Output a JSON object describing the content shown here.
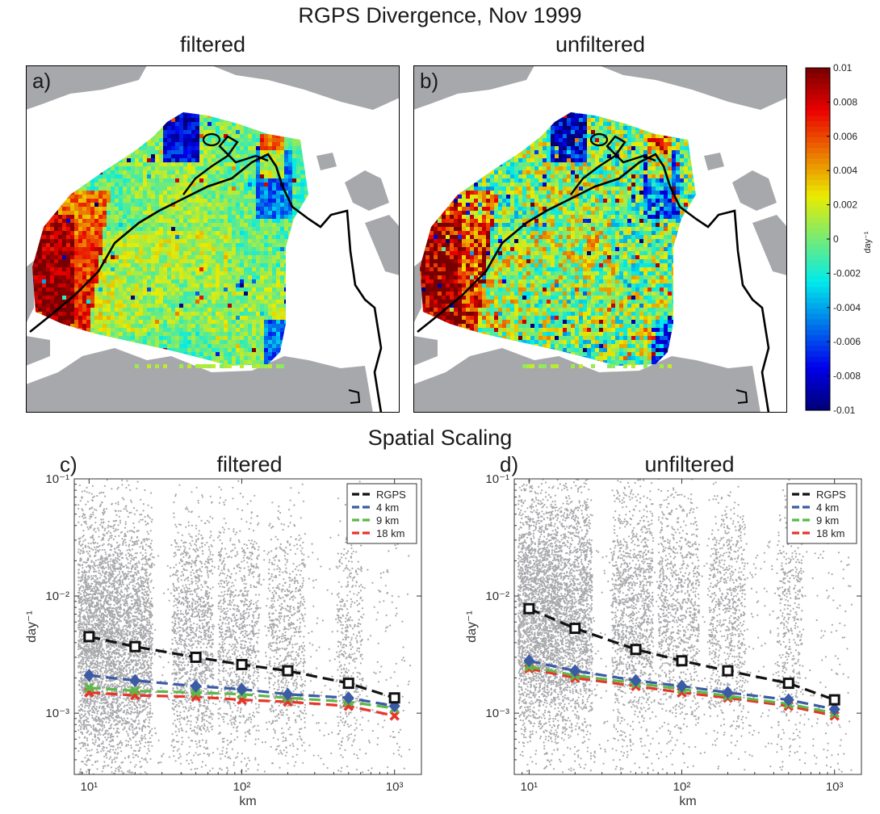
{
  "figure": {
    "title": "RGPS Divergence, Nov 1999",
    "section_title": "Spatial Scaling"
  },
  "maps": [
    {
      "letter": "a)",
      "title": "filtered"
    },
    {
      "letter": "b)",
      "title": "unfiltered"
    }
  ],
  "colorbar": {
    "label": "day⁻¹",
    "ticks": [
      "0.01",
      "0.008",
      "0.006",
      "0.004",
      "0.002",
      "0",
      "-0.002",
      "-0.004",
      "-0.006",
      "-0.008",
      "-0.01"
    ],
    "range": [
      -0.01,
      0.01
    ],
    "colormap": "jet",
    "land_color": "#a7a8ab"
  },
  "chart_data": [
    {
      "type": "scatter",
      "panel": "c)",
      "title": "filtered",
      "xlabel": "km",
      "ylabel": "day⁻¹",
      "xscale": "log",
      "yscale": "log",
      "xlim": [
        8,
        1500
      ],
      "ylim": [
        0.0003,
        0.1
      ],
      "xticks": [
        "10¹",
        "10²",
        "10³"
      ],
      "yticks": [
        "10⁻¹",
        "10⁻²",
        "10⁻³"
      ],
      "legend_position": "top-right",
      "background_scatter_color": "#a7a8ab",
      "x": [
        10,
        20,
        50,
        100,
        200,
        500,
        1000
      ],
      "series": [
        {
          "name": "RGPS",
          "color": "#111111",
          "marker": "square",
          "values": [
            0.0045,
            0.0037,
            0.003,
            0.0026,
            0.0023,
            0.0018,
            0.00135
          ]
        },
        {
          "name": "4 km",
          "color": "#3b5ba5",
          "marker": "diamond",
          "values": [
            0.0021,
            0.0019,
            0.0017,
            0.0016,
            0.00145,
            0.00135,
            0.00115
          ]
        },
        {
          "name": "9 km",
          "color": "#5cb947",
          "marker": "x",
          "values": [
            0.00165,
            0.00155,
            0.0015,
            0.00145,
            0.00135,
            0.00125,
            0.0011
          ]
        },
        {
          "name": "18 km",
          "color": "#e8352a",
          "marker": "x",
          "values": [
            0.0015,
            0.00142,
            0.00138,
            0.0013,
            0.00125,
            0.00115,
            0.00095
          ]
        }
      ]
    },
    {
      "type": "scatter",
      "panel": "d)",
      "title": "unfiltered",
      "xlabel": "km",
      "ylabel": "day⁻¹",
      "xscale": "log",
      "yscale": "log",
      "xlim": [
        8,
        1500
      ],
      "ylim": [
        0.0003,
        0.1
      ],
      "xticks": [
        "10¹",
        "10²",
        "10³"
      ],
      "yticks": [
        "10⁻¹",
        "10⁻²",
        "10⁻³"
      ],
      "legend_position": "top-right",
      "background_scatter_color": "#a7a8ab",
      "x": [
        10,
        20,
        50,
        100,
        200,
        500,
        1000
      ],
      "series": [
        {
          "name": "RGPS",
          "color": "#111111",
          "marker": "square",
          "values": [
            0.0078,
            0.0053,
            0.0035,
            0.0028,
            0.0023,
            0.0018,
            0.0013
          ]
        },
        {
          "name": "4 km",
          "color": "#3b5ba5",
          "marker": "diamond",
          "values": [
            0.0028,
            0.0023,
            0.0019,
            0.0017,
            0.0015,
            0.0013,
            0.00108
          ]
        },
        {
          "name": "9 km",
          "color": "#5cb947",
          "marker": "x",
          "values": [
            0.0025,
            0.0021,
            0.0018,
            0.0016,
            0.0014,
            0.0012,
            0.001
          ]
        },
        {
          "name": "18 km",
          "color": "#e8352a",
          "marker": "x",
          "values": [
            0.0024,
            0.002,
            0.0017,
            0.0015,
            0.00135,
            0.00115,
            0.00095
          ]
        }
      ]
    }
  ]
}
